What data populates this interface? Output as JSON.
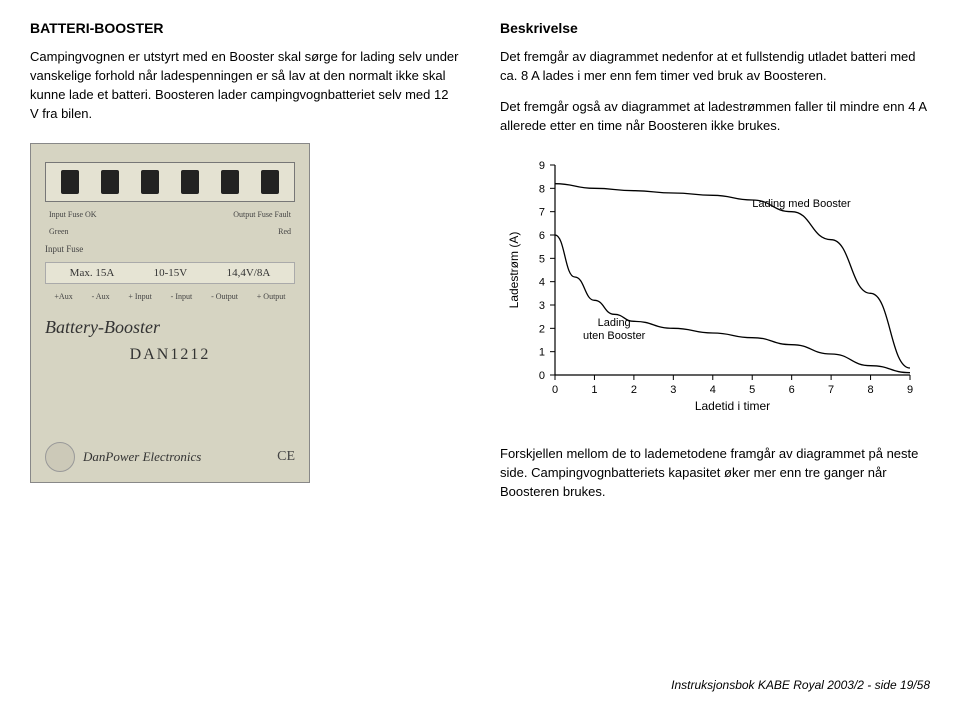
{
  "left": {
    "heading": "BATTERI-BOOSTER",
    "p1": "Campingvognen er utstyrt med en Booster skal sørge for lading selv under vanskelige forhold når ladespenningen er så lav at den normalt ikke skal kunne lade et batteri. Boosteren lader campingvognbatteriet selv med 12 V fra bilen."
  },
  "right": {
    "heading": "Beskrivelse",
    "p1": "Det fremgår av diagrammet nedenfor at et fullstendig utladet batteri med ca. 8 A lades i mer enn fem timer ved bruk av Boosteren.",
    "p2": "Det fremgår også av diagrammet at ladestrømmen faller til mindre enn 4 A allerede etter en time når Boosteren ikke brukes."
  },
  "device": {
    "labels_top": {
      "l1": "Input Fuse OK",
      "l2": "Green",
      "l3": "Output Fuse Fault",
      "l4": "Red"
    },
    "input_fuse": "Input Fuse",
    "specs": {
      "s1": "Max. 15A",
      "s2": "10-15V",
      "s3": "14,4V/8A"
    },
    "pins": {
      "p1": "+Aux",
      "p2": "- Aux",
      "p3": "+ Input",
      "p4": "- Input",
      "p5": "- Output",
      "p6": "+ Output"
    },
    "title": "Battery-Booster",
    "model": "DAN1212",
    "brand": "DanPower Electronics",
    "ce": "CE"
  },
  "chart": {
    "y_label": "Ladestrøm (A)",
    "x_label": "Ladetid i timer",
    "legend_top": "Lading med Booster",
    "legend_bottom_l1": "Lading",
    "legend_bottom_l2": "uten Booster",
    "y_ticks": [
      "0",
      "1",
      "2",
      "3",
      "4",
      "5",
      "6",
      "7",
      "8",
      "9"
    ],
    "x_ticks": [
      "0",
      "1",
      "2",
      "3",
      "4",
      "5",
      "6",
      "7",
      "8",
      "9"
    ],
    "colors": {
      "line": "#000000",
      "bg": "#ffffff"
    },
    "series_booster": [
      [
        0,
        8.2
      ],
      [
        1,
        8.0
      ],
      [
        2,
        7.9
      ],
      [
        3,
        7.8
      ],
      [
        4,
        7.7
      ],
      [
        5,
        7.5
      ],
      [
        6,
        7.0
      ],
      [
        7,
        5.8
      ],
      [
        8,
        3.5
      ],
      [
        9,
        0.3
      ]
    ],
    "series_no_booster": [
      [
        0,
        6.0
      ],
      [
        0.5,
        4.2
      ],
      [
        1,
        3.2
      ],
      [
        1.5,
        2.6
      ],
      [
        2,
        2.3
      ],
      [
        3,
        2.0
      ],
      [
        4,
        1.8
      ],
      [
        5,
        1.6
      ],
      [
        6,
        1.3
      ],
      [
        7,
        0.9
      ],
      [
        8,
        0.4
      ],
      [
        9,
        0.1
      ]
    ],
    "ylim": [
      0,
      9
    ],
    "xlim": [
      0,
      9
    ]
  },
  "footer": {
    "p": "Forskjellen mellom de to lademetodene framgår av diagrammet på neste side. Campingvognbatteriets kapasitet øker mer enn tre ganger når Boosteren brukes."
  },
  "cite": "Instruksjonsbok KABE Royal 2003/2 - side 19/58"
}
